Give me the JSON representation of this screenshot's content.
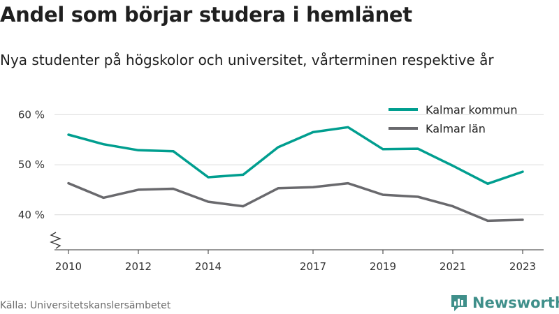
{
  "header": {
    "title": "Andel som börjar studera i hemlänet",
    "subtitle": "Nya studenter på högskolor och universitet, vårterminen respektive år"
  },
  "chart_data": {
    "type": "line",
    "x": [
      2010,
      2011,
      2012,
      2013,
      2014,
      2015,
      2016,
      2017,
      2018,
      2019,
      2020,
      2021,
      2022,
      2023
    ],
    "x_tick_labels": [
      "2010",
      "2012",
      "2014",
      "2017",
      "2019",
      "2021",
      "2023"
    ],
    "y_tick_values": [
      40,
      50,
      60
    ],
    "y_tick_labels": [
      "40 %",
      "50 %",
      "60 %"
    ],
    "ylim": [
      33,
      62
    ],
    "axis_break": true,
    "grid": "horizontal",
    "legend_position": "top-right",
    "series": [
      {
        "name": "Kalmar kommun",
        "color": "#009e8f",
        "values": [
          56.0,
          54.1,
          52.9,
          52.7,
          47.5,
          48.0,
          53.5,
          56.5,
          57.5,
          53.1,
          53.2,
          49.8,
          46.2,
          48.6
        ]
      },
      {
        "name": "Kalmar län",
        "color": "#69696d",
        "values": [
          46.3,
          43.4,
          45.0,
          45.2,
          42.6,
          41.7,
          45.3,
          45.5,
          46.3,
          44.0,
          43.6,
          41.7,
          38.8,
          39.0
        ]
      }
    ]
  },
  "footer": {
    "source": "Källa: Universitetskanslersämbetet",
    "brand": "Newsworthy",
    "brand_icon": "bar-chart-icon",
    "brand_color": "#3f8f8a"
  }
}
